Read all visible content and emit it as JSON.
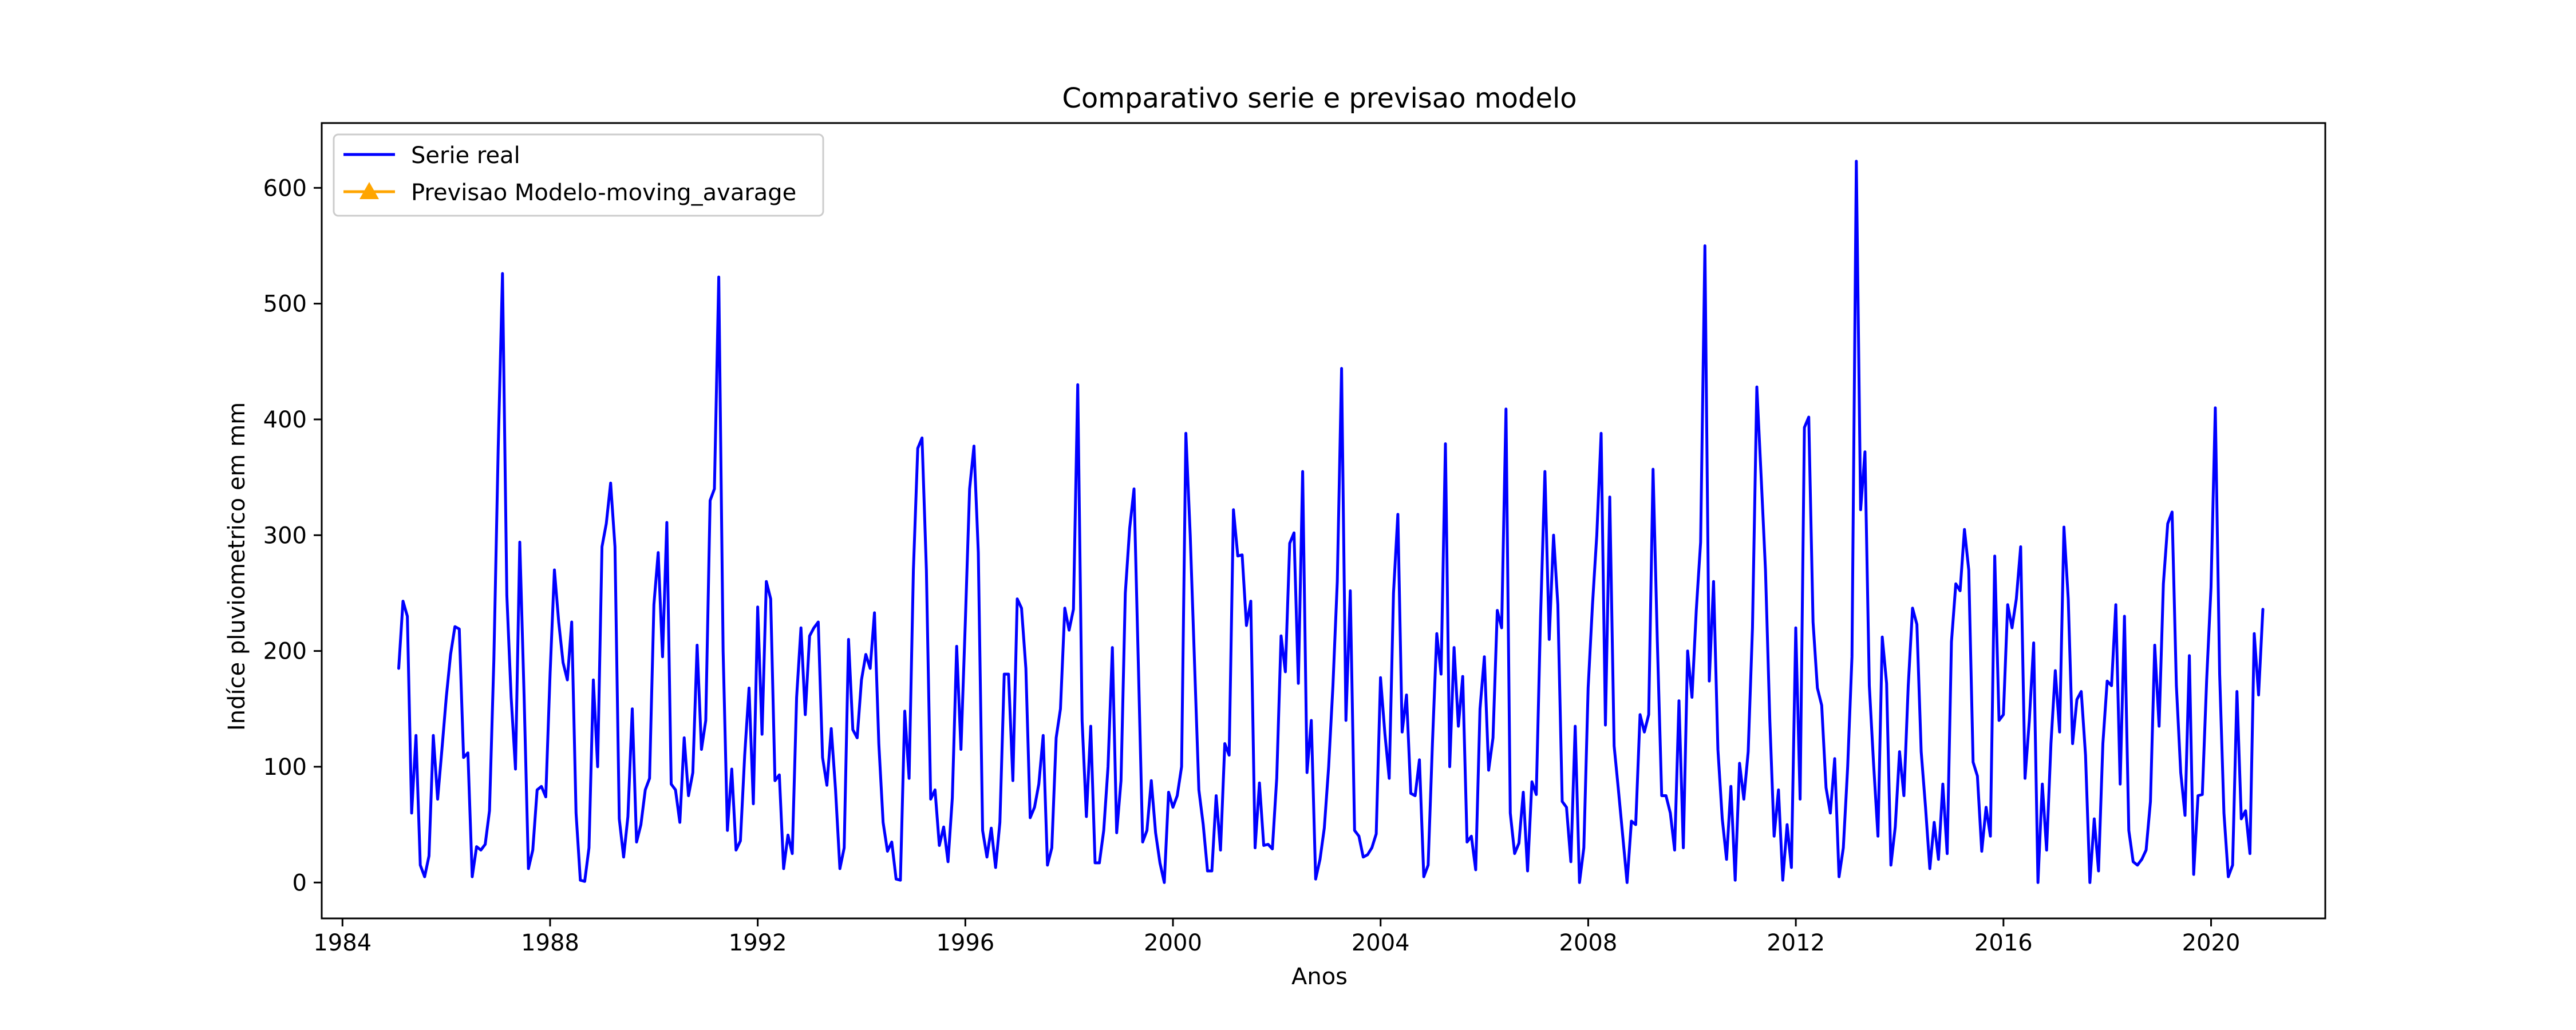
{
  "chart_data": {
    "type": "line",
    "title": "Comparativo serie e previsao modelo",
    "xlabel": "Anos",
    "ylabel": "Indíce pluviometrico em mm",
    "xlim": [
      1983.6,
      2022.2
    ],
    "ylim": [
      -31,
      656
    ],
    "x_ticks": [
      1984,
      1988,
      1992,
      1996,
      2000,
      2004,
      2008,
      2012,
      2016,
      2020
    ],
    "y_ticks": [
      0,
      100,
      200,
      300,
      400,
      500,
      600
    ],
    "grid": false,
    "legend_position": "upper-left",
    "series": [
      {
        "name": "Serie real",
        "color": "#0000ff",
        "marker": "none",
        "x_start": 1985.083,
        "x_step": 0.08333,
        "values": [
          185,
          243,
          230,
          60,
          127,
          15,
          5,
          23,
          127,
          72,
          115,
          160,
          197,
          221,
          219,
          108,
          112,
          5,
          31,
          28,
          33,
          62,
          192,
          375,
          526,
          248,
          160,
          98,
          294,
          160,
          12,
          28,
          80,
          83,
          74,
          180,
          270,
          225,
          190,
          175,
          225,
          60,
          2,
          1,
          30,
          175,
          100,
          290,
          310,
          345,
          290,
          55,
          22,
          57,
          150,
          35,
          50,
          80,
          90,
          240,
          285,
          195,
          311,
          85,
          80,
          52,
          125,
          75,
          95,
          205,
          115,
          140,
          330,
          340,
          523,
          200,
          45,
          98,
          28,
          36,
          110,
          168,
          68,
          238,
          128,
          260,
          245,
          88,
          93,
          12,
          41,
          25,
          160,
          220,
          145,
          213,
          220,
          225,
          108,
          84,
          133,
          80,
          12,
          30,
          210,
          132,
          125,
          175,
          197,
          185,
          233,
          120,
          52,
          27,
          35,
          3,
          2,
          148,
          90,
          270,
          375,
          384,
          270,
          72,
          80,
          32,
          48,
          18,
          73,
          204,
          115,
          225,
          340,
          377,
          285,
          45,
          22,
          47,
          13,
          52,
          180,
          180,
          88,
          245,
          237,
          185,
          56,
          65,
          85,
          127,
          15,
          30,
          125,
          150,
          237,
          218,
          236,
          430,
          140,
          57,
          135,
          17,
          17,
          45,
          100,
          203,
          43,
          88,
          250,
          306,
          340,
          190,
          35,
          45,
          88,
          43,
          17,
          0,
          78,
          65,
          75,
          100,
          388,
          300,
          190,
          80,
          50,
          10,
          10,
          75,
          28,
          120,
          110,
          322,
          282,
          283,
          222,
          243,
          30,
          86,
          32,
          33,
          29,
          90,
          213,
          182,
          293,
          302,
          172,
          355,
          95,
          140,
          3,
          20,
          47,
          100,
          170,
          260,
          444,
          140,
          252,
          45,
          40,
          22,
          24,
          30,
          42,
          177,
          129,
          90,
          250,
          318,
          130,
          162,
          77,
          75,
          106,
          5,
          15,
          120,
          215,
          180,
          379,
          100,
          203,
          135,
          178,
          35,
          40,
          11,
          150,
          195,
          97,
          125,
          235,
          220,
          409,
          60,
          25,
          34,
          78,
          10,
          87,
          76,
          230,
          355,
          210,
          300,
          240,
          70,
          65,
          18,
          135,
          0,
          30,
          168,
          240,
          300,
          388,
          136,
          333,
          118,
          80,
          40,
          0,
          53,
          50,
          145,
          130,
          145,
          357,
          208,
          75,
          75,
          60,
          28,
          157,
          30,
          200,
          160,
          235,
          294,
          550,
          174,
          260,
          115,
          55,
          20,
          83,
          2,
          103,
          72,
          113,
          220,
          428,
          350,
          270,
          140,
          40,
          80,
          2,
          50,
          13,
          220,
          72,
          393,
          402,
          225,
          168,
          153,
          82,
          60,
          107,
          5,
          30,
          100,
          195,
          623,
          322,
          372,
          170,
          102,
          40,
          212,
          172,
          15,
          48,
          113,
          75,
          170,
          237,
          223,
          113,
          65,
          12,
          52,
          20,
          85,
          25,
          208,
          258,
          252,
          305,
          270,
          104,
          92,
          27,
          65,
          40,
          282,
          140,
          145,
          240,
          220,
          245,
          290,
          90,
          140,
          207,
          0,
          85,
          28,
          120,
          183,
          130,
          307,
          245,
          120,
          158,
          165,
          110,
          0,
          55,
          10,
          120,
          174,
          170,
          240,
          85,
          230,
          45,
          18,
          15,
          20,
          28,
          70,
          205,
          135,
          258,
          310,
          320,
          170,
          95,
          58,
          196,
          7,
          75,
          76,
          175,
          255,
          410,
          180,
          60,
          5,
          15,
          165,
          55,
          62,
          25,
          215,
          162,
          236
        ]
      },
      {
        "name": "Previsao Modelo-moving_avarage",
        "color": "#ffa500",
        "marker": "triangle",
        "values": []
      }
    ]
  }
}
